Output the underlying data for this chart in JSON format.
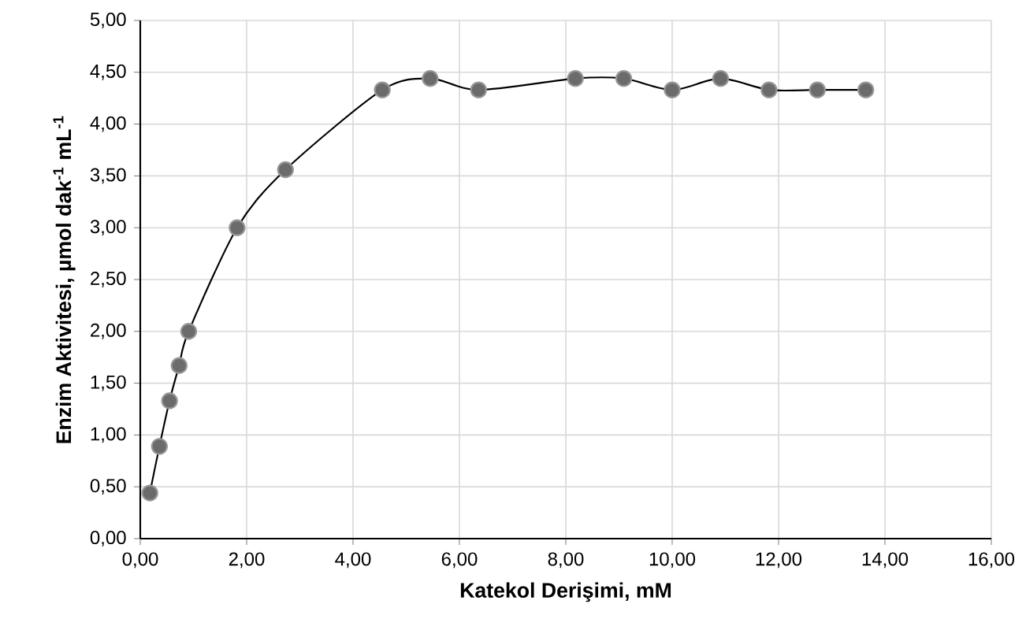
{
  "chart_data": {
    "type": "line",
    "xlabel": "Katekol Derişimi, mM",
    "ylabel": "Enzim Aktivitesi, µmol dak$^{-1}$ mL$^{-1}$",
    "x": [
      0.18,
      0.36,
      0.55,
      0.73,
      0.91,
      1.82,
      2.73,
      4.55,
      5.45,
      6.36,
      8.18,
      9.09,
      10.0,
      10.91,
      11.82,
      12.73,
      13.64
    ],
    "values": [
      0.44,
      0.89,
      1.33,
      1.67,
      2.0,
      3.0,
      3.56,
      4.33,
      4.44,
      4.33,
      4.44,
      4.44,
      4.33,
      4.44,
      4.33,
      4.33,
      4.33
    ],
    "color": "#6b6b6b",
    "marker": "circle",
    "line_style": "solid",
    "grid": true,
    "xlim": [
      0,
      16
    ],
    "ylim": [
      0,
      5
    ],
    "xticks": [
      {
        "value": 0,
        "label": "0,00"
      },
      {
        "value": 2,
        "label": "2,00"
      },
      {
        "value": 4,
        "label": "4,00"
      },
      {
        "value": 6,
        "label": "6,00"
      },
      {
        "value": 8,
        "label": "8,00"
      },
      {
        "value": 10,
        "label": "10,00"
      },
      {
        "value": 12,
        "label": "12,00"
      },
      {
        "value": 14,
        "label": "14,00"
      },
      {
        "value": 16,
        "label": "16,00"
      }
    ],
    "yticks": [
      {
        "value": 0,
        "label": "0,00"
      },
      {
        "value": 0.5,
        "label": "0,50"
      },
      {
        "value": 1,
        "label": "1,00"
      },
      {
        "value": 1.5,
        "label": "1,50"
      },
      {
        "value": 2,
        "label": "2,00"
      },
      {
        "value": 2.5,
        "label": "2,50"
      },
      {
        "value": 3,
        "label": "3,00"
      },
      {
        "value": 3.5,
        "label": "3,50"
      },
      {
        "value": 4,
        "label": "4,00"
      },
      {
        "value": 4.5,
        "label": "4,50"
      },
      {
        "value": 5,
        "label": "5,00"
      }
    ]
  }
}
